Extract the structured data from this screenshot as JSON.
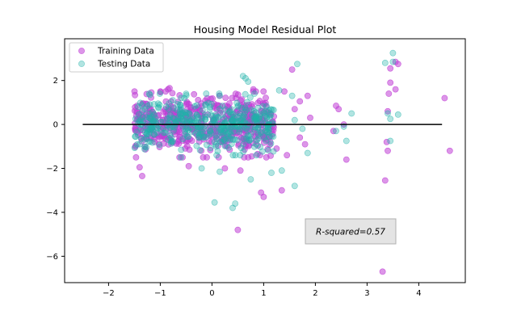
{
  "chart_data": {
    "type": "scatter",
    "title": "Housing Model Residual Plot",
    "xlabel": "",
    "ylabel": "",
    "xlim": [
      -2.85,
      4.9
    ],
    "ylim": [
      -7.2,
      3.9
    ],
    "xticks": [
      -2,
      -1,
      0,
      1,
      2,
      3,
      4
    ],
    "yticks": [
      -6,
      -4,
      -2,
      0,
      2
    ],
    "grid": false,
    "legend_position": "top-left",
    "hline": {
      "y": 0,
      "xmin": -2.5,
      "xmax": 4.45,
      "color": "#000000"
    },
    "annotation": {
      "text": "R-squared=0.57"
    },
    "series": [
      {
        "name": "Training Data",
        "color": "#c03fd6",
        "alpha": 0.55,
        "cluster": {
          "count": 520,
          "x_range": [
            -1.5,
            1.2
          ],
          "y_range": [
            -1.5,
            1.5
          ]
        },
        "points": [
          [
            -1.4,
            -1.95
          ],
          [
            -1.35,
            -2.35
          ],
          [
            -1.45,
            0.85
          ],
          [
            -0.85,
            1.6
          ],
          [
            -0.82,
            1.65
          ],
          [
            0.8,
            1.6
          ],
          [
            0.85,
            1.5
          ],
          [
            1.4,
            1.5
          ],
          [
            1.55,
            2.5
          ],
          [
            1.7,
            1.05
          ],
          [
            1.85,
            1.3
          ],
          [
            1.6,
            0.7
          ],
          [
            1.9,
            0.3
          ],
          [
            1.7,
            -0.6
          ],
          [
            1.8,
            -0.9
          ],
          [
            2.4,
            0.85
          ],
          [
            2.45,
            0.7
          ],
          [
            2.55,
            0.0
          ],
          [
            2.6,
            -1.6
          ],
          [
            2.35,
            -0.3
          ],
          [
            0.5,
            -4.8
          ],
          [
            0.25,
            -2.0
          ],
          [
            0.55,
            -2.1
          ],
          [
            0.95,
            -3.1
          ],
          [
            1.0,
            -3.3
          ],
          [
            1.35,
            -3.0
          ],
          [
            0.7,
            -1.5
          ],
          [
            1.25,
            -1.1
          ],
          [
            1.45,
            -1.4
          ],
          [
            -0.45,
            -1.9
          ],
          [
            3.3,
            -6.7
          ],
          [
            3.35,
            -2.55
          ],
          [
            3.4,
            -1.2
          ],
          [
            3.38,
            -0.8
          ],
          [
            3.4,
            0.6
          ],
          [
            3.42,
            1.4
          ],
          [
            3.45,
            1.9
          ],
          [
            3.45,
            2.55
          ],
          [
            3.55,
            2.85
          ],
          [
            3.6,
            2.75
          ],
          [
            3.55,
            1.6
          ],
          [
            4.5,
            1.2
          ],
          [
            4.6,
            -1.2
          ]
        ]
      },
      {
        "name": "Testing Data",
        "color": "#20b2aa",
        "alpha": 0.35,
        "cluster": {
          "count": 420,
          "x_range": [
            -1.5,
            1.2
          ],
          "y_range": [
            -1.4,
            1.4
          ]
        },
        "points": [
          [
            -1.2,
            1.35
          ],
          [
            -1.4,
            -0.9
          ],
          [
            0.6,
            2.2
          ],
          [
            0.65,
            2.1
          ],
          [
            0.7,
            1.95
          ],
          [
            1.3,
            1.55
          ],
          [
            1.65,
            2.75
          ],
          [
            1.55,
            1.3
          ],
          [
            1.6,
            0.2
          ],
          [
            1.75,
            -0.2
          ],
          [
            1.85,
            -1.3
          ],
          [
            2.4,
            -0.3
          ],
          [
            2.55,
            -0.1
          ],
          [
            2.6,
            -0.75
          ],
          [
            2.7,
            0.5
          ],
          [
            0.05,
            -3.55
          ],
          [
            0.4,
            -3.8
          ],
          [
            0.45,
            -3.6
          ],
          [
            0.75,
            -2.5
          ],
          [
            1.15,
            -2.2
          ],
          [
            1.35,
            -2.1
          ],
          [
            1.6,
            -2.8
          ],
          [
            0.15,
            -2.15
          ],
          [
            -0.2,
            -2.0
          ],
          [
            -0.6,
            -1.5
          ],
          [
            3.35,
            2.8
          ],
          [
            3.5,
            3.25
          ],
          [
            3.5,
            2.85
          ],
          [
            3.4,
            0.5
          ],
          [
            3.45,
            0.25
          ],
          [
            3.45,
            -0.75
          ],
          [
            3.6,
            0.45
          ]
        ]
      }
    ]
  }
}
